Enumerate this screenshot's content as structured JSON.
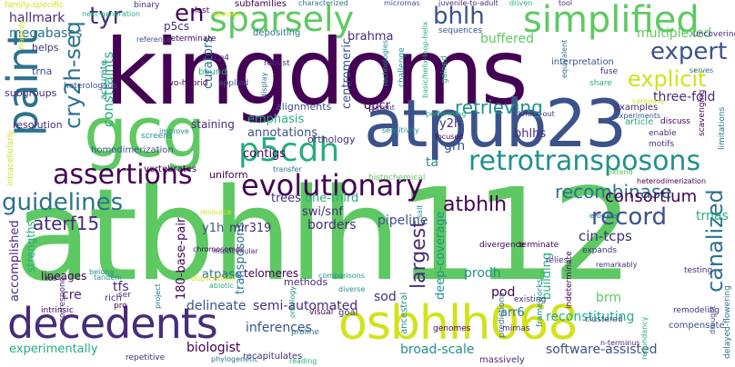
{
  "cloud": {
    "palette": {
      "dark_purple": "#440154",
      "indigo": "#472d7b",
      "blue": "#3b528b",
      "steel": "#2c728e",
      "teal": "#21918c",
      "green": "#27ad81",
      "lime": "#5ec962",
      "yellow": "#d2e21b"
    },
    "words": [
      {
        "text": "atbhlh112",
        "color": "#5ec962"
      },
      {
        "text": "kingdoms",
        "color": "#440154"
      },
      {
        "text": "atpub23",
        "color": "#3b528b"
      },
      {
        "text": "gcg",
        "color": "#5ec962"
      },
      {
        "text": "decedents",
        "color": "#472d7b"
      },
      {
        "text": "osbhlh068",
        "color": "#d2e21b"
      },
      {
        "text": "paint",
        "color": "#2c728e"
      },
      {
        "text": "sparsely",
        "color": "#5ec962"
      },
      {
        "text": "simplified",
        "color": "#5ec962"
      },
      {
        "text": "p5cdh",
        "color": "#27ad81"
      },
      {
        "text": "retrotransposons",
        "color": "#21918c"
      },
      {
        "text": "evolutionary",
        "color": "#440154"
      },
      {
        "text": "assertions",
        "color": "#440154"
      },
      {
        "text": "guidelines",
        "color": "#2c728e"
      },
      {
        "text": "aterf15",
        "color": "#472d7b"
      },
      {
        "text": "canalized",
        "color": "#2c728e"
      },
      {
        "text": "expert",
        "color": "#3b528b"
      },
      {
        "text": "explicit",
        "color": "#d2e21b"
      },
      {
        "text": "cry2h-seq",
        "color": "#2c728e"
      },
      {
        "text": "record",
        "color": "#3b528b"
      },
      {
        "text": "recombinase",
        "color": "#2c728e"
      },
      {
        "text": "bhlh",
        "color": "#3b528b"
      },
      {
        "text": "tyr",
        "color": "#472d7b"
      },
      {
        "text": "en",
        "color": "#440154"
      },
      {
        "text": "largest",
        "color": "#472d7b"
      },
      {
        "text": "atbhlh",
        "color": "#440154"
      },
      {
        "text": "consortium",
        "color": "#440154"
      },
      {
        "text": "retrieving",
        "color": "#21918c"
      },
      {
        "text": "hallmark",
        "color": "#472d7b"
      },
      {
        "text": "megabases",
        "color": "#2c728e"
      },
      {
        "text": "constraints",
        "color": "#27ad81"
      },
      {
        "text": "curators",
        "color": "#2c728e"
      },
      {
        "text": "multiplexed",
        "color": "#5ec962"
      },
      {
        "text": "three-fold",
        "color": "#472d7b"
      },
      {
        "text": "buffered",
        "color": "#5ec962"
      },
      {
        "text": "brahma",
        "color": "#472d7b"
      },
      {
        "text": "centromeric",
        "color": "#3b528b"
      },
      {
        "text": "emphasis",
        "color": "#27ad81"
      },
      {
        "text": "annotations",
        "color": "#3b528b"
      },
      {
        "text": "contigs",
        "color": "#440154"
      },
      {
        "text": "trees",
        "color": "#472d7b"
      },
      {
        "text": "one-third",
        "color": "#27ad81"
      },
      {
        "text": "swi/snf",
        "color": "#472d7b"
      },
      {
        "text": "borders",
        "color": "#472d7b"
      },
      {
        "text": "pipeline",
        "color": "#3b528b"
      },
      {
        "text": "deep-coverage",
        "color": "#21918c"
      },
      {
        "text": "building",
        "color": "#27ad81"
      },
      {
        "text": "transposons",
        "color": "#2c728e"
      },
      {
        "text": "semi-automated",
        "color": "#472d7b"
      },
      {
        "text": "inferences",
        "color": "#3b528b"
      },
      {
        "text": "broad-scale",
        "color": "#21918c"
      },
      {
        "text": "software-assisted",
        "color": "#3b528b"
      },
      {
        "text": "180-base-pair",
        "color": "#440154"
      },
      {
        "text": "accomplished",
        "color": "#472d7b"
      },
      {
        "text": "strengths",
        "color": "#27ad81"
      },
      {
        "text": "lineages",
        "color": "#440154"
      },
      {
        "text": "tfs",
        "color": "#472d7b"
      },
      {
        "text": "cre",
        "color": "#472d7b"
      },
      {
        "text": "delineate",
        "color": "#3b528b"
      },
      {
        "text": "experimentally",
        "color": "#27ad81"
      },
      {
        "text": "biologist",
        "color": "#440154"
      },
      {
        "text": "prodh",
        "color": "#21918c"
      },
      {
        "text": "pod",
        "color": "#440154"
      },
      {
        "text": "sod",
        "color": "#472d7b"
      },
      {
        "text": "brm",
        "color": "#5ec962"
      },
      {
        "text": "cin-tcps",
        "color": "#472d7b"
      },
      {
        "text": "trnas",
        "color": "#27ad81"
      },
      {
        "text": "bhlhs",
        "color": "#472d7b"
      },
      {
        "text": "y2h",
        "color": "#472d7b"
      },
      {
        "text": "grn",
        "color": "#3b528b"
      },
      {
        "text": "ta",
        "color": "#21918c"
      },
      {
        "text": "qpcr",
        "color": "#440154"
      },
      {
        "text": "p5cs",
        "color": "#472d7b"
      },
      {
        "text": "arr6",
        "color": "#2c728e"
      },
      {
        "text": "mir319",
        "color": "#472d7b"
      },
      {
        "text": "y1h",
        "color": "#3b528b"
      },
      {
        "text": "reconstituting",
        "color": "#27ad81"
      },
      {
        "text": "atpase",
        "color": "#2c728e"
      },
      {
        "text": "telomeres",
        "color": "#440154"
      },
      {
        "text": "methods",
        "color": "#472d7b"
      },
      {
        "text": "staining",
        "color": "#472d7b"
      },
      {
        "text": "alignments",
        "color": "#3b528b"
      },
      {
        "text": "orthology",
        "color": "#472d7b"
      },
      {
        "text": "uniform",
        "color": "#440154"
      },
      {
        "text": "homodimerization",
        "color": "#3b528b"
      },
      {
        "text": "vertebrates",
        "color": "#440154"
      },
      {
        "text": "screens",
        "color": "#21918c"
      },
      {
        "text": "resolution",
        "color": "#472d7b"
      },
      {
        "text": "subgroups",
        "color": "#472d7b"
      },
      {
        "text": "trna",
        "color": "#3b528b"
      },
      {
        "text": "helps",
        "color": "#472d7b"
      },
      {
        "text": "accurate",
        "color": "#21918c"
      },
      {
        "text": "heterologous",
        "color": "#3b528b"
      },
      {
        "text": "two-hybrid",
        "color": "#440154"
      },
      {
        "text": "tcp4",
        "color": "#472d7b"
      },
      {
        "text": "determinate",
        "color": "#440154"
      },
      {
        "text": "bound",
        "color": "#27ad81"
      },
      {
        "text": "applied",
        "color": "#3b528b"
      },
      {
        "text": "depositing",
        "color": "#2c728e"
      },
      {
        "text": "robust",
        "color": "#472d7b"
      },
      {
        "text": "display",
        "color": "#2c728e"
      },
      {
        "text": "technologies",
        "color": "#21918c"
      },
      {
        "text": "challenge",
        "color": "#21918c"
      },
      {
        "text": "basic/helix-loop-helix",
        "color": "#27ad81"
      },
      {
        "text": "gained",
        "color": "#27ad81"
      },
      {
        "text": "sequences",
        "color": "#3b528b"
      },
      {
        "text": "interpretation",
        "color": "#3b528b"
      },
      {
        "text": "fuse",
        "color": "#472d7b"
      },
      {
        "text": "share",
        "color": "#27ad81"
      },
      {
        "text": "uncovering",
        "color": "#472d7b"
      },
      {
        "text": "serves",
        "color": "#2c728e"
      },
      {
        "text": "examples",
        "color": "#472d7b"
      },
      {
        "text": "experiments",
        "color": "#3b528b"
      },
      {
        "text": "article",
        "color": "#27ad81"
      },
      {
        "text": "discuss",
        "color": "#440154"
      },
      {
        "text": "enable",
        "color": "#472d7b"
      },
      {
        "text": "motifs",
        "color": "#472d7b"
      },
      {
        "text": "scavenging",
        "color": "#440154"
      },
      {
        "text": "limitations",
        "color": "#2c728e"
      },
      {
        "text": "heterodimerization",
        "color": "#440154"
      },
      {
        "text": "e-boxes",
        "color": "#2c728e"
      },
      {
        "text": "expands",
        "color": "#472d7b"
      },
      {
        "text": "divergence",
        "color": "#440154"
      },
      {
        "text": "terminate",
        "color": "#440154"
      },
      {
        "text": "relies",
        "color": "#472d7b"
      },
      {
        "text": "remarkably",
        "color": "#472d7b"
      },
      {
        "text": "testing",
        "color": "#472d7b"
      },
      {
        "text": "clustered",
        "color": "#3b528b"
      },
      {
        "text": "remodeling",
        "color": "#472d7b"
      },
      {
        "text": "existing",
        "color": "#472d7b"
      },
      {
        "text": "predictions",
        "color": "#2c728e"
      },
      {
        "text": "indeterminate",
        "color": "#440154"
      },
      {
        "text": "frameworks",
        "color": "#21918c"
      },
      {
        "text": "redundancy",
        "color": "#27ad81"
      },
      {
        "text": "compensate",
        "color": "#3b528b"
      },
      {
        "text": "n-terminus",
        "color": "#472d7b"
      },
      {
        "text": "delayed-flowering",
        "color": "#2c728e"
      },
      {
        "text": "mirnas",
        "color": "#472d7b"
      },
      {
        "text": "genomes",
        "color": "#440154"
      },
      {
        "text": "ancestral",
        "color": "#21918c"
      },
      {
        "text": "massively",
        "color": "#472d7b"
      },
      {
        "text": "goal",
        "color": "#472d7b"
      },
      {
        "text": "diverse",
        "color": "#21918c"
      },
      {
        "text": "proline",
        "color": "#2c728e"
      },
      {
        "text": "visual",
        "color": "#440154"
      },
      {
        "text": "recapitulates",
        "color": "#472d7b"
      },
      {
        "text": "repetitive",
        "color": "#472d7b"
      },
      {
        "text": "phylogenetic",
        "color": "#2c728e"
      },
      {
        "text": "reading",
        "color": "#27ad81"
      },
      {
        "text": "rich",
        "color": "#472d7b"
      },
      {
        "text": "pro",
        "color": "#440154"
      },
      {
        "text": "ser",
        "color": "#472d7b"
      },
      {
        "text": "intrinsic",
        "color": "#440154"
      },
      {
        "text": "correspond",
        "color": "#472d7b"
      },
      {
        "text": "ros",
        "color": "#440154"
      },
      {
        "text": "belong",
        "color": "#21918c"
      },
      {
        "text": "tandem",
        "color": "#21918c"
      },
      {
        "text": "project",
        "color": "#2c728e"
      },
      {
        "text": "abiotic",
        "color": "#27ad81"
      },
      {
        "text": "chromosomes",
        "color": "#440154"
      },
      {
        "text": "multicellular",
        "color": "#472d7b"
      },
      {
        "text": "salt",
        "color": "#21918c"
      },
      {
        "text": "histochemical",
        "color": "#5ec962"
      },
      {
        "text": "transfer",
        "color": "#2c728e"
      },
      {
        "text": "focused",
        "color": "#440154"
      },
      {
        "text": "sensitivity",
        "color": "#21918c"
      },
      {
        "text": "current",
        "color": "#472d7b"
      },
      {
        "text": "performing",
        "color": "#27ad81"
      },
      {
        "text": "knock-out",
        "color": "#472d7b"
      },
      {
        "text": "family-specific",
        "color": "#d2e21b"
      },
      {
        "text": "next-generation",
        "color": "#27ad81"
      },
      {
        "text": "binary",
        "color": "#472d7b"
      },
      {
        "text": "lost",
        "color": "#440154"
      },
      {
        "text": "species",
        "color": "#d2e21b"
      },
      {
        "text": "subfamilies",
        "color": "#440154"
      },
      {
        "text": "characterized",
        "color": "#2c728e"
      },
      {
        "text": "micrornas",
        "color": "#3b528b"
      },
      {
        "text": "juvenile-to-adult",
        "color": "#472d7b"
      },
      {
        "text": "driven",
        "color": "#27ad81"
      },
      {
        "text": "tool",
        "color": "#472d7b"
      },
      {
        "text": "reference",
        "color": "#3b528b"
      },
      {
        "text": "equivalent",
        "color": "#2c728e"
      },
      {
        "text": "compare",
        "color": "#d2e21b"
      },
      {
        "text": "majority",
        "color": "#d2e21b"
      },
      {
        "text": "intracellularly",
        "color": "#d2e21b"
      },
      {
        "text": "improve",
        "color": "#21918c"
      },
      {
        "text": "extend",
        "color": "#5ec962"
      },
      {
        "text": "drought",
        "color": "#3b528b"
      },
      {
        "text": "duplications",
        "color": "#d2e21b"
      },
      {
        "text": "resource",
        "color": "#d2e21b"
      },
      {
        "text": "comparisons",
        "color": "#21918c"
      },
      {
        "text": "ontology",
        "color": "#21918c"
      }
    ]
  }
}
